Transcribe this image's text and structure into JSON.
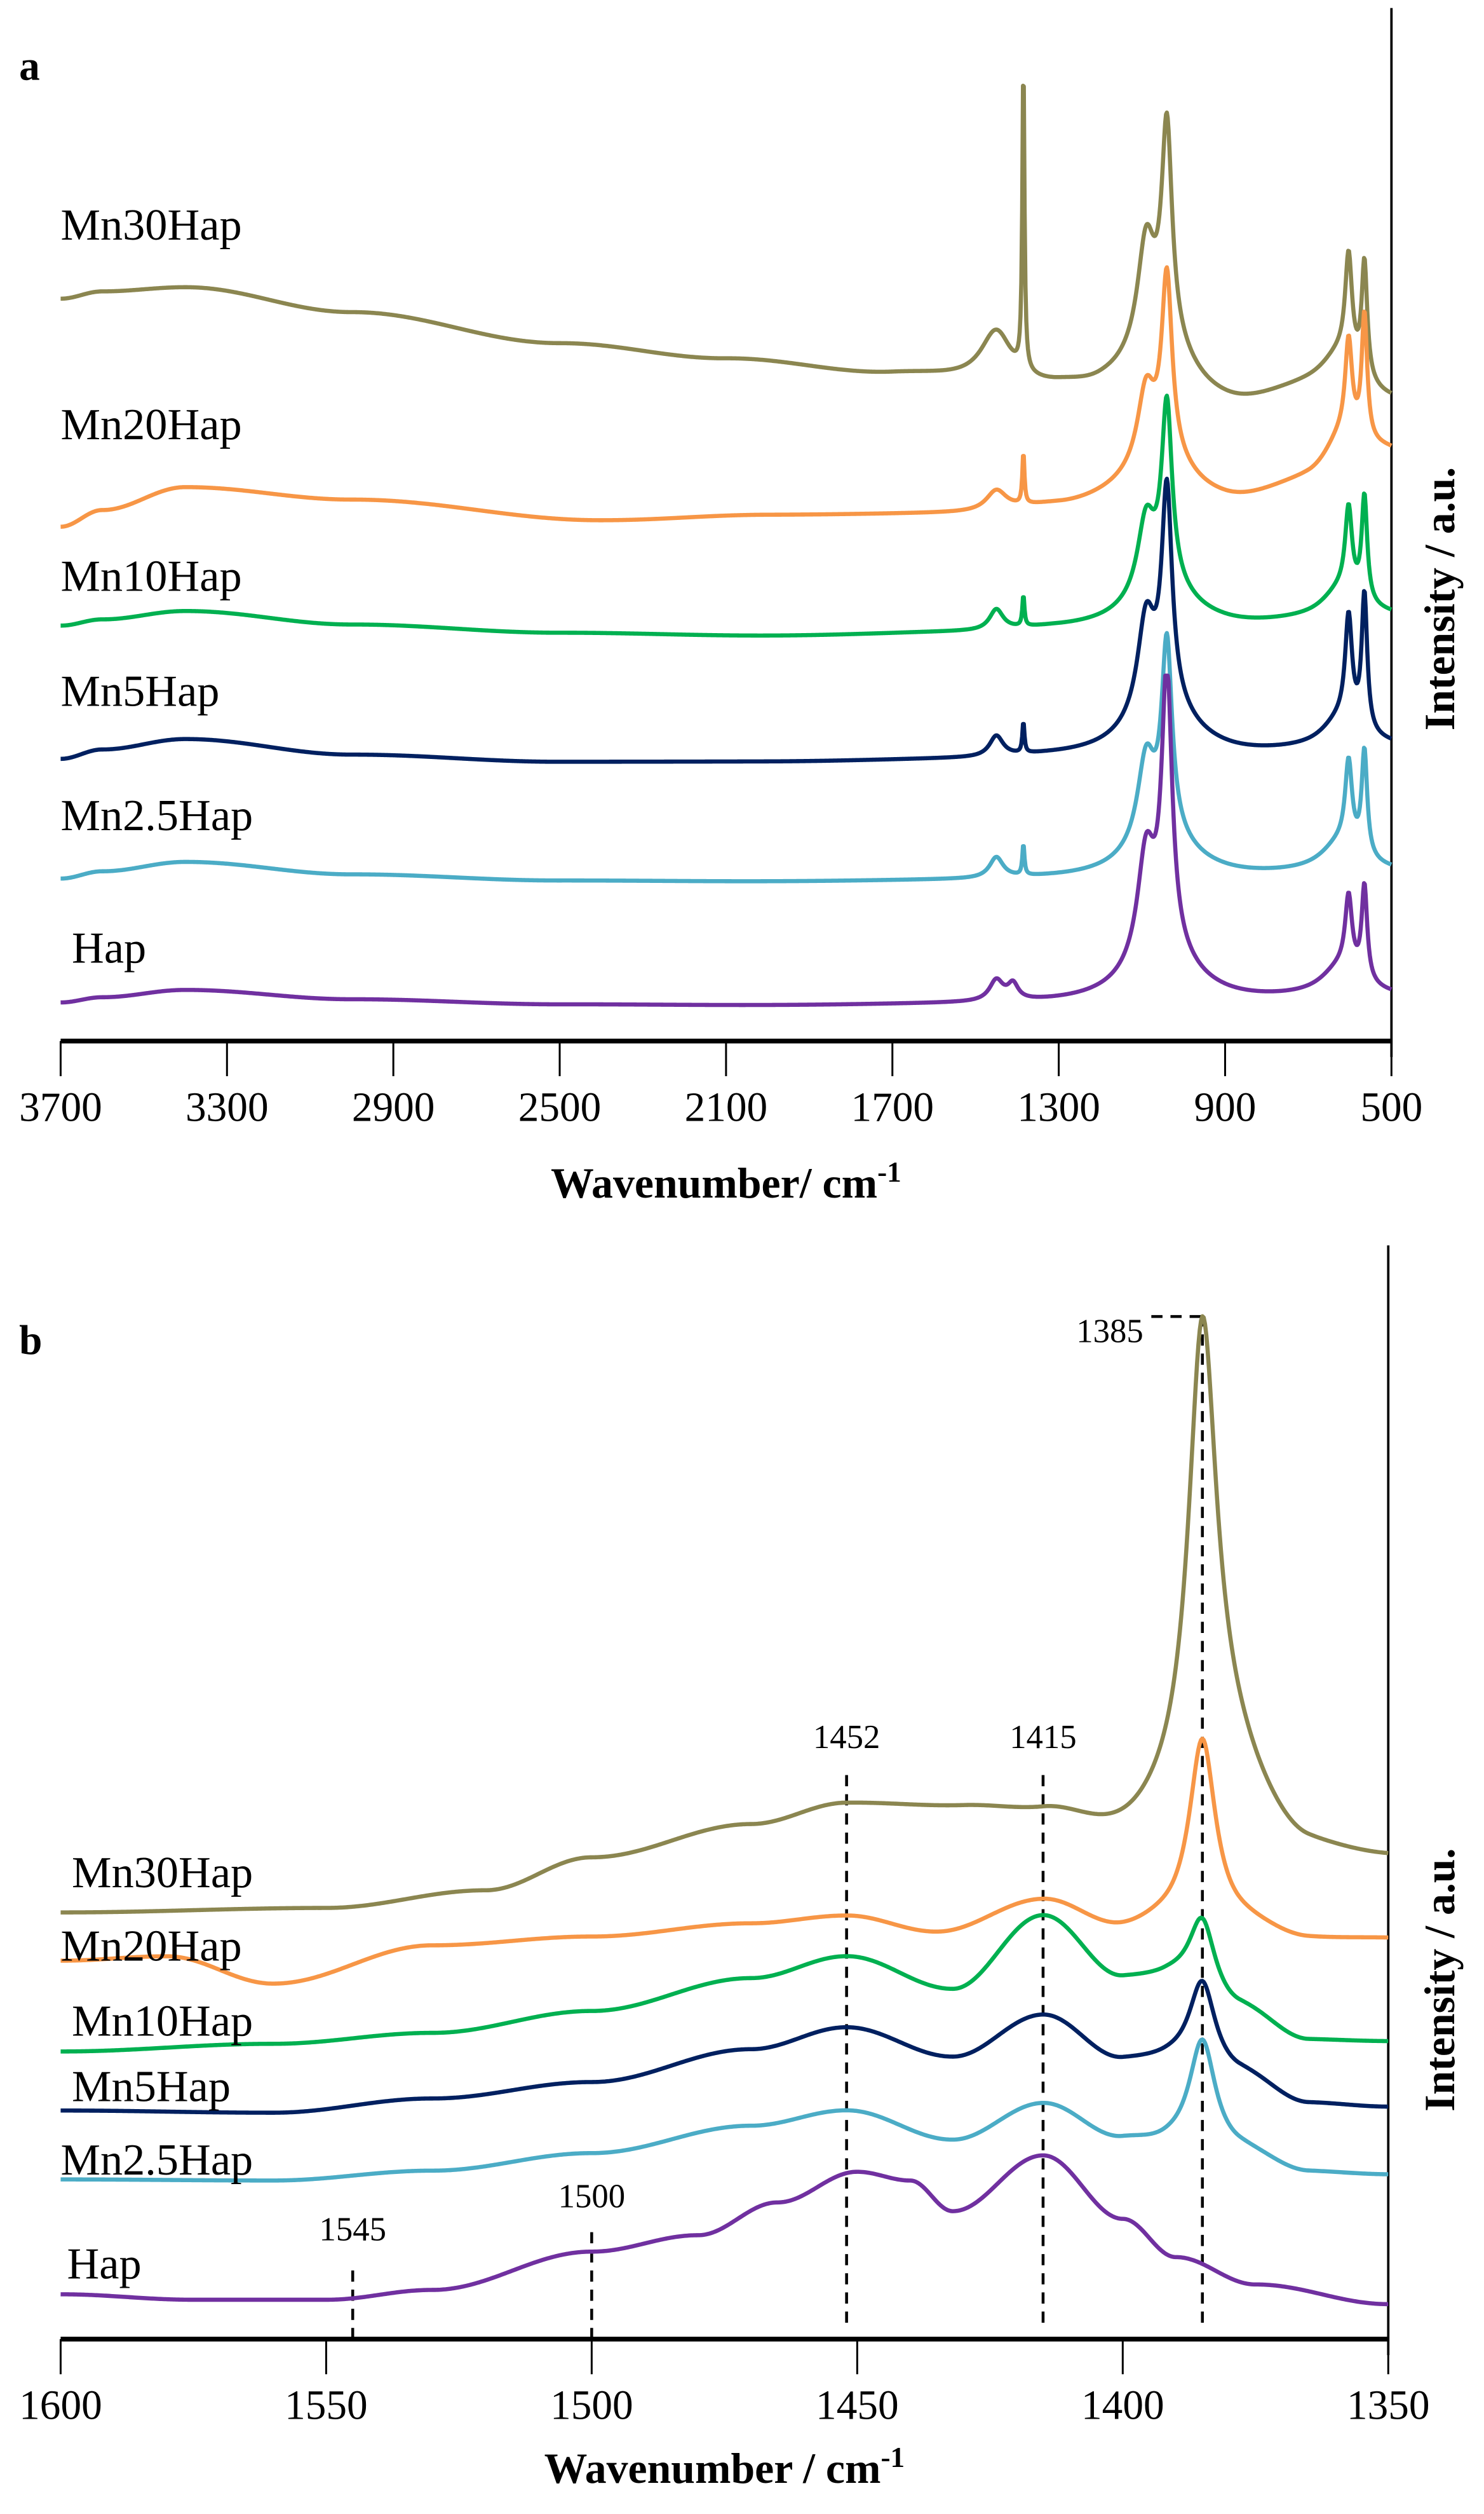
{
  "chart_data": [
    {
      "type": "line",
      "panel_label": "a",
      "xlabel": "Wavenumber/ cm-1",
      "xlabel_main": "Wavenumber/ cm",
      "xlabel_sup": "-1",
      "ylabel": "Intensity / a.u.",
      "xlim": [
        3700,
        500
      ],
      "ylim": [
        0,
        100
      ],
      "xticks": [
        "3700",
        "3300",
        "2900",
        "2500",
        "2100",
        "1700",
        "1300",
        "900",
        "500"
      ],
      "xtick_values": [
        3700,
        3300,
        2900,
        2500,
        2100,
        1700,
        1300,
        900,
        500
      ],
      "series": [
        {
          "name": "Mn30Hap",
          "color": "#8b8650",
          "baseline": [
            [
              3700,
              71.3
            ],
            [
              3600,
              72
            ],
            [
              3400,
              72.4
            ],
            [
              3000,
              70
            ],
            [
              2500,
              67
            ],
            [
              2100,
              65.5
            ],
            [
              1700,
              64
            ],
            [
              1300,
              62.4
            ],
            [
              1200,
              62
            ],
            [
              900,
              60.4
            ],
            [
              700,
              62
            ],
            [
              500,
              61
            ]
          ],
          "peaks": [
            [
              1450,
              5,
              45
            ],
            [
              1385,
              30,
              3
            ],
            [
              1040,
              20,
              15
            ],
            [
              1090,
              10,
              25
            ],
            [
              1050,
              6,
              90
            ],
            [
              603,
              10,
              10
            ],
            [
              565,
              11,
              8
            ],
            [
              620,
              4,
              60
            ]
          ]
        },
        {
          "name": "Mn20Hap",
          "color": "#f79646",
          "baseline": [
            [
              3700,
              49.4
            ],
            [
              3600,
              51
            ],
            [
              3400,
              53.2
            ],
            [
              3000,
              52
            ],
            [
              2400,
              50
            ],
            [
              2000,
              50.5
            ],
            [
              1500,
              50.6
            ],
            [
              1300,
              51.2
            ],
            [
              1100,
              52
            ],
            [
              900,
              51.4
            ],
            [
              700,
              53
            ],
            [
              500,
              56
            ]
          ],
          "peaks": [
            [
              1450,
              2,
              30
            ],
            [
              1385,
              5,
              3
            ],
            [
              1040,
              17,
              15
            ],
            [
              1090,
              7,
              25
            ],
            [
              1050,
              4,
              90
            ],
            [
              603,
              9,
              10
            ],
            [
              565,
              12,
              8
            ],
            [
              620,
              4,
              60
            ]
          ]
        },
        {
          "name": "Mn10Hap",
          "color": "#00b050",
          "baseline": [
            [
              3700,
              39.9
            ],
            [
              3600,
              40.5
            ],
            [
              3400,
              41.3
            ],
            [
              3000,
              40
            ],
            [
              2500,
              39.2
            ],
            [
              2000,
              38.9
            ],
            [
              1500,
              39.2
            ],
            [
              1300,
              39.5
            ],
            [
              900,
              39.6
            ],
            [
              700,
              40
            ],
            [
              500,
              40.5
            ]
          ],
          "peaks": [
            [
              1450,
              2,
              20
            ],
            [
              1385,
              3,
              3
            ],
            [
              1040,
              17,
              15
            ],
            [
              1090,
              7,
              25
            ],
            [
              1050,
              4,
              90
            ],
            [
              603,
              8,
              10
            ],
            [
              565,
              10,
              8
            ],
            [
              620,
              3,
              60
            ]
          ]
        },
        {
          "name": "Mn5Hap",
          "color": "#002060",
          "baseline": [
            [
              3700,
              27.1
            ],
            [
              3600,
              28
            ],
            [
              3400,
              29
            ],
            [
              3000,
              27.5
            ],
            [
              2500,
              26.8
            ],
            [
              2000,
              26.8
            ],
            [
              1500,
              27
            ],
            [
              1300,
              27.2
            ],
            [
              900,
              27.2
            ],
            [
              700,
              27.5
            ],
            [
              500,
              28
            ]
          ],
          "peaks": [
            [
              1450,
              2,
              20
            ],
            [
              1385,
              3,
              3
            ],
            [
              1040,
              20,
              15
            ],
            [
              1090,
              9,
              25
            ],
            [
              1050,
              5,
              90
            ],
            [
              603,
              10,
              10
            ],
            [
              565,
              13,
              8
            ],
            [
              620,
              3,
              60
            ]
          ]
        },
        {
          "name": "Mn2.5Hap",
          "color": "#4bacc6",
          "baseline": [
            [
              3700,
              15.6
            ],
            [
              3600,
              16.3
            ],
            [
              3400,
              17.2
            ],
            [
              3000,
              16
            ],
            [
              2500,
              15.4
            ],
            [
              2000,
              15.3
            ],
            [
              1500,
              15.4
            ],
            [
              1300,
              15.5
            ],
            [
              900,
              15.6
            ],
            [
              700,
              15.8
            ],
            [
              500,
              16
            ]
          ],
          "peaks": [
            [
              1450,
              2,
              20
            ],
            [
              1385,
              3,
              3
            ],
            [
              1040,
              18,
              15
            ],
            [
              1090,
              8,
              25
            ],
            [
              1050,
              4,
              90
            ],
            [
              603,
              8,
              10
            ],
            [
              565,
              10,
              8
            ],
            [
              620,
              3,
              60
            ]
          ]
        },
        {
          "name": "Hap",
          "color": "#7030a0",
          "baseline": [
            [
              3700,
              3.7
            ],
            [
              3600,
              4.2
            ],
            [
              3400,
              4.9
            ],
            [
              3000,
              4
            ],
            [
              2500,
              3.5
            ],
            [
              2000,
              3.4
            ],
            [
              1500,
              3.5
            ],
            [
              1300,
              3.5
            ],
            [
              900,
              3.6
            ],
            [
              700,
              3.8
            ],
            [
              500,
              4
            ]
          ],
          "peaks": [
            [
              1450,
              2,
              20
            ],
            [
              1410,
              1.5,
              15
            ],
            [
              1040,
              26,
              15
            ],
            [
              1090,
              10,
              25
            ],
            [
              1050,
              5,
              90
            ],
            [
              603,
              7,
              10
            ],
            [
              565,
              9,
              8
            ],
            [
              620,
              3,
              60
            ]
          ],
          "clip_max": 35.1
        }
      ]
    },
    {
      "type": "line",
      "panel_label": "b",
      "xlabel": "Wavenumber / cm-1",
      "xlabel_main": "Wavenumber / cm",
      "xlabel_sup": "-1",
      "ylabel": "Intensity / a.u.",
      "xlim": [
        1600,
        1350
      ],
      "ylim": [
        0,
        100
      ],
      "xticks": [
        "1600",
        "1550",
        "1500",
        "1450",
        "1400",
        "1350"
      ],
      "xtick_values": [
        1600,
        1550,
        1500,
        1450,
        1400,
        1350
      ],
      "annotations": [
        {
          "label": "1545",
          "x": 1545,
          "from": 0,
          "to": 7
        },
        {
          "label": "1500",
          "x": 1500,
          "from": 0,
          "to": 10
        },
        {
          "label": "1452",
          "x": 1452,
          "from": 1.5,
          "to": 52
        },
        {
          "label": "1415",
          "x": 1415,
          "from": 1.5,
          "to": 52
        },
        {
          "label": "1385",
          "x": 1385,
          "from": 1.5,
          "to": 93.5
        }
      ],
      "series": [
        {
          "name": "Mn30Hap",
          "color": "#8b8650",
          "baseline": [
            [
              1600,
              39
            ],
            [
              1550,
              39.4
            ],
            [
              1520,
              41
            ],
            [
              1500,
              44
            ],
            [
              1470,
              47
            ],
            [
              1452,
              48.9
            ],
            [
              1430,
              48.5
            ],
            [
              1415,
              48
            ],
            [
              1400,
              46
            ],
            [
              1390,
              47
            ],
            [
              1378,
              47
            ],
            [
              1365,
              44.2
            ],
            [
              1350,
              43.8
            ]
          ],
          "peaks": [
            [
              1385,
              42,
              3.2
            ],
            [
              1381,
              6,
              7
            ]
          ]
        },
        {
          "name": "Mn20Hap",
          "color": "#f79646",
          "baseline": [
            [
              1600,
              34.6
            ],
            [
              1580,
              35
            ],
            [
              1560,
              32.5
            ],
            [
              1530,
              36
            ],
            [
              1500,
              36.8
            ],
            [
              1470,
              38
            ],
            [
              1452,
              38.7
            ],
            [
              1435,
              37.2
            ],
            [
              1415,
              40.1
            ],
            [
              1400,
              37.5
            ],
            [
              1392,
              38
            ],
            [
              1378,
              37.8
            ],
            [
              1365,
              36.5
            ],
            [
              1350,
              36.6
            ]
          ],
          "peaks": [
            [
              1385,
              17,
              3
            ]
          ]
        },
        {
          "name": "Mn10Hap",
          "color": "#00b050",
          "baseline": [
            [
              1600,
              26.3
            ],
            [
              1560,
              27
            ],
            [
              1530,
              28
            ],
            [
              1500,
              30
            ],
            [
              1470,
              33
            ],
            [
              1452,
              35
            ],
            [
              1432,
              32
            ],
            [
              1415,
              38.7
            ],
            [
              1400,
              33
            ],
            [
              1392,
              33
            ],
            [
              1378,
              30
            ],
            [
              1365,
              27.3
            ],
            [
              1350,
              27.2
            ]
          ],
          "peaks": [
            [
              1385,
              7,
              3
            ]
          ]
        },
        {
          "name": "Mn5Hap",
          "color": "#002060",
          "baseline": [
            [
              1600,
              20.9
            ],
            [
              1560,
              20.7
            ],
            [
              1530,
              22
            ],
            [
              1500,
              23.5
            ],
            [
              1470,
              26.5
            ],
            [
              1452,
              28.5
            ],
            [
              1432,
              25.8
            ],
            [
              1415,
              29.6
            ],
            [
              1400,
              25.5
            ],
            [
              1392,
              25.5
            ],
            [
              1378,
              24
            ],
            [
              1365,
              21.5
            ],
            [
              1350,
              21.2
            ]
          ],
          "peaks": [
            [
              1385,
              8,
              3
            ]
          ]
        },
        {
          "name": "Mn2.5Hap",
          "color": "#4bacc6",
          "baseline": [
            [
              1600,
              14.6
            ],
            [
              1560,
              14.5
            ],
            [
              1530,
              15.4
            ],
            [
              1500,
              17
            ],
            [
              1470,
              19.5
            ],
            [
              1452,
              20.9
            ],
            [
              1432,
              18.2
            ],
            [
              1415,
              21.5
            ],
            [
              1400,
              18.2
            ],
            [
              1392,
              17.8
            ],
            [
              1378,
              17
            ],
            [
              1365,
              15.2
            ],
            [
              1350,
              15
            ]
          ],
          "peaks": [
            [
              1385,
              10,
              3
            ]
          ]
        },
        {
          "name": "Hap",
          "color": "#7030a0",
          "baseline": [
            [
              1600,
              4.1
            ],
            [
              1575,
              3.6
            ],
            [
              1550,
              3.6
            ],
            [
              1530,
              4.5
            ],
            [
              1500,
              8
            ],
            [
              1480,
              9.5
            ],
            [
              1465,
              12.5
            ],
            [
              1450,
              15.3
            ],
            [
              1440,
              14.5
            ],
            [
              1432,
              11.7
            ],
            [
              1415,
              16.8
            ],
            [
              1400,
              11
            ],
            [
              1390,
              7.5
            ],
            [
              1375,
              5
            ],
            [
              1350,
              3.2
            ]
          ],
          "peaks": []
        }
      ]
    }
  ]
}
